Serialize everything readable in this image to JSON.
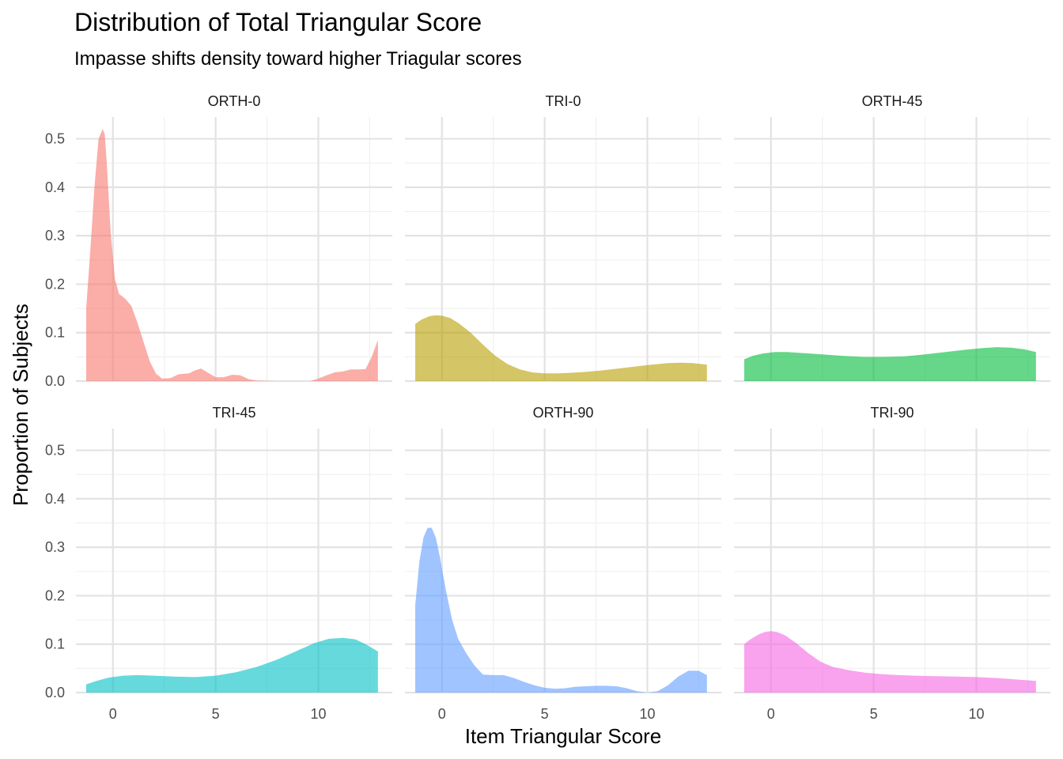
{
  "chart_data": {
    "type": "area",
    "title": "Distribution of Total Triangular Score",
    "subtitle": "Impasse shifts density toward higher Triagular scores",
    "xlabel": "Item Triangular Score",
    "ylabel": "Proportion of Subjects",
    "xlim": [
      -1.8,
      13.6
    ],
    "ylim": [
      0,
      0.545
    ],
    "x_ticks": [
      0,
      5,
      10
    ],
    "x_tick_labels": [
      "0",
      "5",
      "10"
    ],
    "y_ticks": [
      0,
      0.1,
      0.2,
      0.3,
      0.4,
      0.5
    ],
    "y_tick_labels": [
      "0.0",
      "0.1",
      "0.2",
      "0.3",
      "0.4",
      "0.5"
    ],
    "grid": true,
    "legend": "none",
    "facet_layout": [
      2,
      3
    ],
    "series": [
      {
        "name": "ORTH-0",
        "color": "#F8766D",
        "x": [
          -1.3,
          -1.1,
          -0.9,
          -0.7,
          -0.5,
          -0.4,
          -0.3,
          -0.1,
          0.1,
          0.3,
          0.6,
          0.9,
          1.2,
          1.5,
          1.8,
          2.1,
          2.4,
          2.8,
          3.2,
          3.7,
          4.0,
          4.3,
          4.6,
          5.0,
          5.4,
          5.8,
          6.2,
          6.6,
          7.0,
          8.0,
          9.0,
          9.6,
          10.0,
          10.4,
          10.8,
          11.2,
          11.6,
          12.0,
          12.3,
          12.6,
          12.9
        ],
        "values": [
          0.15,
          0.27,
          0.4,
          0.5,
          0.52,
          0.51,
          0.45,
          0.3,
          0.21,
          0.18,
          0.17,
          0.155,
          0.12,
          0.08,
          0.04,
          0.015,
          0.005,
          0.006,
          0.014,
          0.016,
          0.022,
          0.026,
          0.018,
          0.008,
          0.008,
          0.013,
          0.012,
          0.004,
          0.001,
          0.0,
          0.0,
          0.0,
          0.005,
          0.012,
          0.018,
          0.02,
          0.024,
          0.024,
          0.025,
          0.05,
          0.085
        ]
      },
      {
        "name": "TRI-0",
        "color": "#B79F00",
        "x": [
          -1.3,
          -1.0,
          -0.6,
          -0.3,
          0.0,
          0.4,
          0.8,
          1.4,
          2.0,
          2.6,
          3.2,
          3.8,
          4.4,
          5.0,
          5.6,
          6.2,
          7.0,
          7.8,
          8.6,
          9.4,
          10.2,
          11.0,
          11.6,
          12.2,
          12.9
        ],
        "values": [
          0.118,
          0.127,
          0.134,
          0.136,
          0.135,
          0.13,
          0.12,
          0.1,
          0.075,
          0.052,
          0.035,
          0.024,
          0.018,
          0.016,
          0.016,
          0.017,
          0.019,
          0.022,
          0.026,
          0.03,
          0.034,
          0.037,
          0.038,
          0.037,
          0.034
        ]
      },
      {
        "name": "ORTH-45",
        "color": "#00BA38",
        "x": [
          -1.3,
          -0.9,
          -0.4,
          0.2,
          0.8,
          1.5,
          2.5,
          3.5,
          4.5,
          5.5,
          6.5,
          7.5,
          8.5,
          9.5,
          10.3,
          11.0,
          11.7,
          12.3,
          12.9
        ],
        "values": [
          0.045,
          0.052,
          0.057,
          0.06,
          0.06,
          0.058,
          0.055,
          0.052,
          0.05,
          0.05,
          0.051,
          0.055,
          0.06,
          0.065,
          0.068,
          0.07,
          0.069,
          0.066,
          0.06
        ]
      },
      {
        "name": "TRI-45",
        "color": "#00BFC4",
        "x": [
          -1.3,
          -0.8,
          -0.2,
          0.5,
          1.2,
          2.0,
          3.0,
          4.0,
          5.0,
          6.0,
          7.0,
          8.0,
          9.0,
          9.8,
          10.5,
          11.2,
          11.8,
          12.3,
          12.9
        ],
        "values": [
          0.017,
          0.024,
          0.031,
          0.035,
          0.036,
          0.035,
          0.033,
          0.032,
          0.035,
          0.042,
          0.053,
          0.068,
          0.087,
          0.102,
          0.111,
          0.113,
          0.11,
          0.1,
          0.085
        ]
      },
      {
        "name": "ORTH-90",
        "color": "#619CFF",
        "x": [
          -1.3,
          -1.1,
          -0.9,
          -0.7,
          -0.5,
          -0.3,
          -0.1,
          0.2,
          0.5,
          0.8,
          1.2,
          1.6,
          2.0,
          2.5,
          3.0,
          3.5,
          4.0,
          4.5,
          5.0,
          5.5,
          6.0,
          6.5,
          7.0,
          7.5,
          8.0,
          8.5,
          9.0,
          9.5,
          10.0,
          10.5,
          11.0,
          11.5,
          12.0,
          12.5,
          12.9
        ],
        "values": [
          0.18,
          0.27,
          0.32,
          0.34,
          0.34,
          0.32,
          0.28,
          0.21,
          0.15,
          0.11,
          0.08,
          0.055,
          0.037,
          0.036,
          0.036,
          0.03,
          0.022,
          0.015,
          0.01,
          0.008,
          0.009,
          0.012,
          0.013,
          0.014,
          0.014,
          0.013,
          0.009,
          0.003,
          0.0,
          0.003,
          0.015,
          0.033,
          0.045,
          0.045,
          0.036
        ]
      },
      {
        "name": "TRI-90",
        "color": "#F564E3",
        "x": [
          -1.3,
          -1.0,
          -0.6,
          -0.3,
          0.0,
          0.3,
          0.7,
          1.2,
          1.8,
          2.4,
          3.0,
          3.8,
          4.6,
          5.4,
          6.2,
          7.0,
          8.0,
          9.0,
          10.0,
          11.0,
          12.0,
          12.9
        ],
        "values": [
          0.1,
          0.11,
          0.12,
          0.125,
          0.127,
          0.125,
          0.118,
          0.103,
          0.082,
          0.064,
          0.053,
          0.046,
          0.041,
          0.038,
          0.036,
          0.035,
          0.034,
          0.033,
          0.032,
          0.03,
          0.027,
          0.024
        ]
      }
    ]
  }
}
